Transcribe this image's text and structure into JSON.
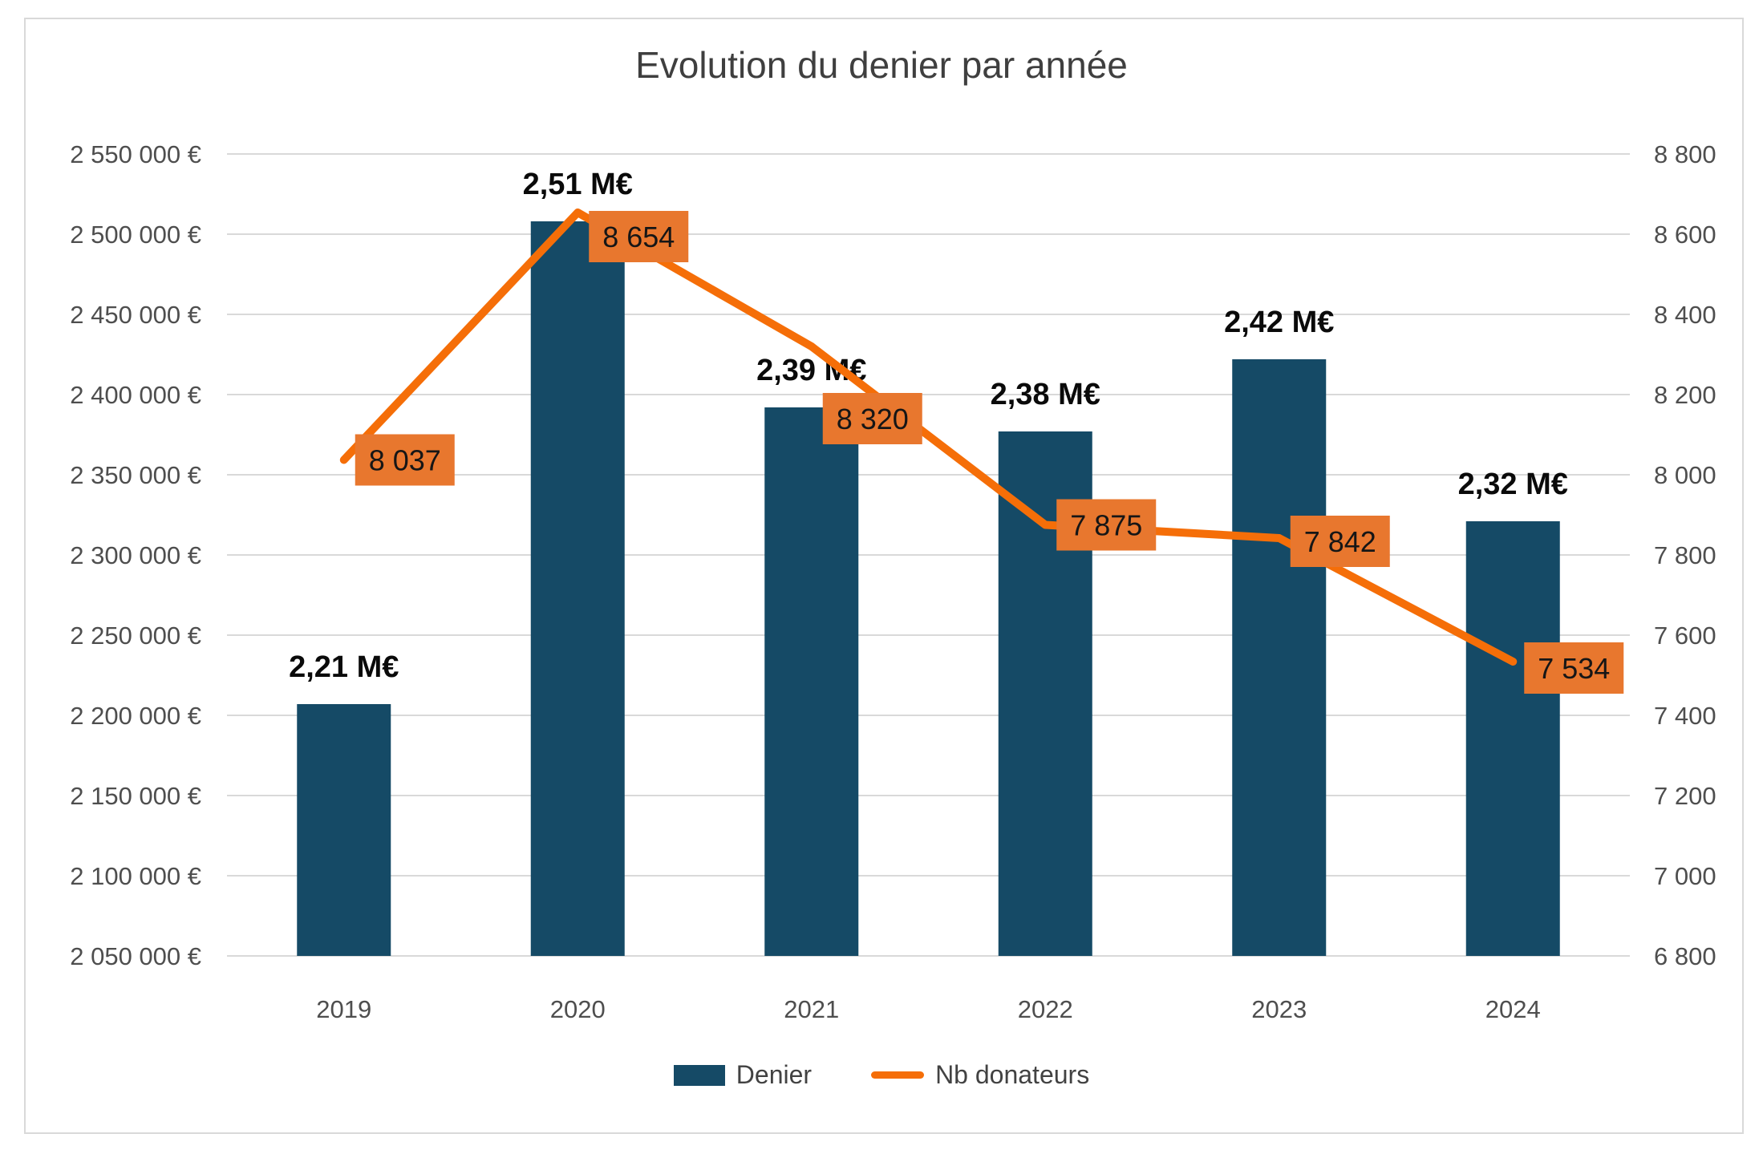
{
  "chart_data": {
    "type": "bar+line combo",
    "title": "Evolution du denier par année",
    "categories": [
      "2019",
      "2020",
      "2021",
      "2022",
      "2023",
      "2024"
    ],
    "series": [
      {
        "name": "Denier",
        "type": "bar",
        "axis": "left",
        "values": [
          2207000,
          2508000,
          2392000,
          2377000,
          2422000,
          2321000
        ],
        "labels": [
          "2,21 M€",
          "2,51 M€",
          "2,39 M€",
          "2,38 M€",
          "2,42 M€",
          "2,32 M€"
        ]
      },
      {
        "name": "Nb donateurs",
        "type": "line",
        "axis": "right",
        "values": [
          8037,
          8654,
          8320,
          7875,
          7842,
          7534
        ],
        "labels": [
          "8 037",
          "8 654",
          "8 320",
          "7 875",
          "7 842",
          "7 534"
        ]
      }
    ],
    "y_left": {
      "min": 2050000,
      "max": 2550000,
      "step": 50000,
      "ticks_top_to_bottom": [
        "2 550 000 €",
        "2 500 000 €",
        "2 450 000 €",
        "2 400 000 €",
        "2 350 000 €",
        "2 300 000 €",
        "2 250 000 €",
        "2 200 000 €",
        "2 150 000 €",
        "2 100 000 €",
        "2 050 000 €"
      ]
    },
    "y_right": {
      "min": 6800,
      "max": 8800,
      "step": 200,
      "ticks_top_to_bottom": [
        "8 800",
        "8 600",
        "8 400",
        "8 200",
        "8 000",
        "7 800",
        "7 600",
        "7 400",
        "7 200",
        "7 000",
        "6 800"
      ]
    },
    "grid": "horizontal",
    "legend_position": "bottom"
  },
  "colors": {
    "bar": "#154A66",
    "line": "#F56E08",
    "donor_label_box": "#E8772E",
    "grid": "#D9D9D9",
    "frame": "#D9D9D9"
  }
}
